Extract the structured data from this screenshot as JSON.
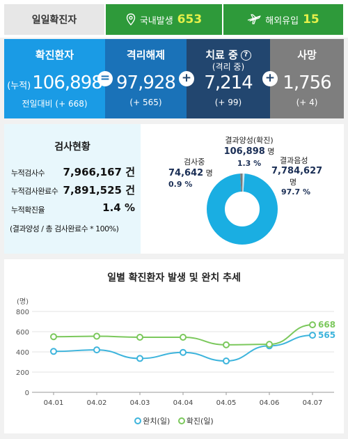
{
  "topbar": {
    "daily_label": "일일확진자",
    "domestic": {
      "label": "국내발생",
      "value": "653",
      "icon": "location-pin-icon"
    },
    "overseas": {
      "label": "해외유입",
      "value": "15",
      "icon": "airplane-icon"
    }
  },
  "stats": {
    "confirmed": {
      "title": "확진환자",
      "prefix": "(누적)",
      "value": "106,898",
      "change": "전일대비 (+ 668)"
    },
    "released": {
      "title": "격리해제",
      "value": "97,928",
      "change": "(+ 565)"
    },
    "treating": {
      "title": "치료 중",
      "subtitle": "(격리 중)",
      "value": "7,214",
      "change": "(+ 99)",
      "help": "?"
    },
    "deaths": {
      "title": "사망",
      "value": "1,756",
      "change": "(+ 4)"
    },
    "ops": {
      "eq": "=",
      "plus": "+"
    },
    "colors": {
      "confirmed": "#1a9be5",
      "released": "#1a72b8",
      "treating": "#22466f",
      "deaths": "#7e7e7e"
    }
  },
  "tests": {
    "header": "검사현황",
    "rows": [
      {
        "label": "누적검사수",
        "value": "7,966,167 건"
      },
      {
        "label": "누적검사완료수",
        "value": "7,891,525 건"
      },
      {
        "label": "누적확진율",
        "value": "1.4 %"
      }
    ],
    "note": "(결과양성 / 총 검사완료수 * 100%)"
  },
  "donut": {
    "positive": {
      "label": "결과양성(확진)",
      "value": "106,898",
      "unit": "명",
      "pct": "1.3 %",
      "share": 1.3
    },
    "testing": {
      "label": "검사중",
      "value": "74,642",
      "unit": "명",
      "pct": "0.9 %",
      "share": 0.9
    },
    "negative": {
      "label": "결과음성",
      "value": "7,784,627",
      "unit": "명",
      "pct": "97.7 %",
      "share": 97.7
    },
    "colors": {
      "negative": "#1aaee2",
      "positive": "#7a7a7a",
      "testing": "#cfeaf4"
    }
  },
  "chart": {
    "title": "일별 확진환자 발생 및 완치 추세",
    "unit": "(명)",
    "legend": {
      "released": "완치(일)",
      "confirmed": "확진(일)"
    }
  },
  "chart_data": {
    "type": "line",
    "categories": [
      "04.01",
      "04.02",
      "04.03",
      "04.04",
      "04.05",
      "04.06",
      "04.07"
    ],
    "series": [
      {
        "name": "완치(일)",
        "values": [
          405,
          420,
          335,
          395,
          310,
          460,
          565
        ],
        "color": "#3db4dc"
      },
      {
        "name": "확진(일)",
        "values": [
          550,
          555,
          545,
          545,
          470,
          475,
          668
        ],
        "color": "#7bc85c"
      }
    ],
    "end_labels": [
      "565",
      "668"
    ],
    "yticks": [
      "800",
      "600",
      "400",
      "200",
      "0"
    ],
    "ylim": [
      0,
      800
    ]
  }
}
